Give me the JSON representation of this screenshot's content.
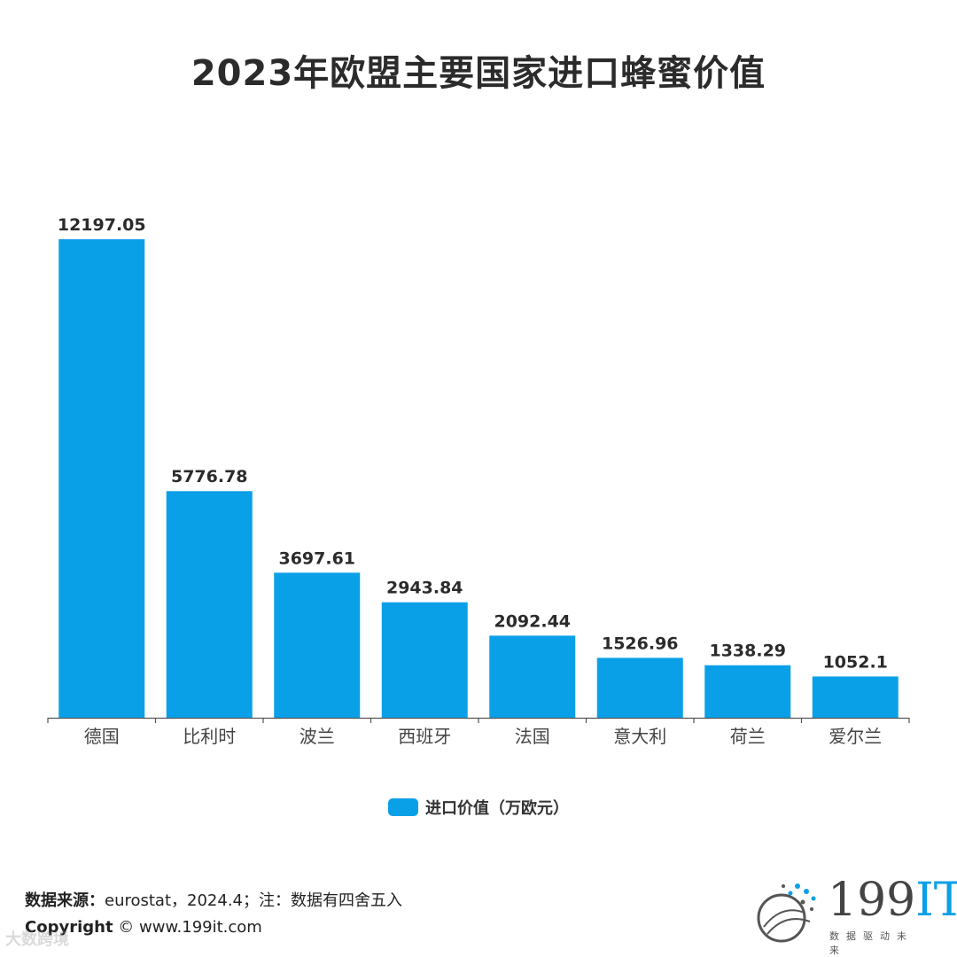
{
  "title": "2023年欧盟主要国家进口蜂蜜价值",
  "chart_data": {
    "type": "bar",
    "title": "2023年欧盟主要国家进口蜂蜜价值",
    "categories": [
      "德国",
      "比利时",
      "波兰",
      "西班牙",
      "法国",
      "意大利",
      "荷兰",
      "爱尔兰"
    ],
    "series": [
      {
        "name": "进口价值（万欧元）",
        "values": [
          12197.05,
          5776.78,
          3697.61,
          2943.84,
          2092.44,
          1526.96,
          1338.29,
          1052.1
        ],
        "labels": [
          "12197.05",
          "5776.78",
          "3697.61",
          "2943.84",
          "2092.44",
          "1526.96",
          "1338.29",
          "1052.1"
        ]
      }
    ],
    "xlabel": "",
    "ylabel": "",
    "ylim": [
      0,
      12197.05
    ],
    "grid": false,
    "legend_position": "bottom",
    "bar_color": "#0aa0e8"
  },
  "legend": {
    "label": "进口价值（万欧元）"
  },
  "footer": {
    "source_label": "数据来源：",
    "source_text": "eurostat，2024.4；注：数据有四舍五入",
    "copyright_label": "Copyright",
    "copyright_text": "© www.199it.com"
  },
  "watermark": "大数跨境",
  "logo": {
    "main": "199",
    "accent": "IT",
    "sub": "数据驱动未来"
  }
}
